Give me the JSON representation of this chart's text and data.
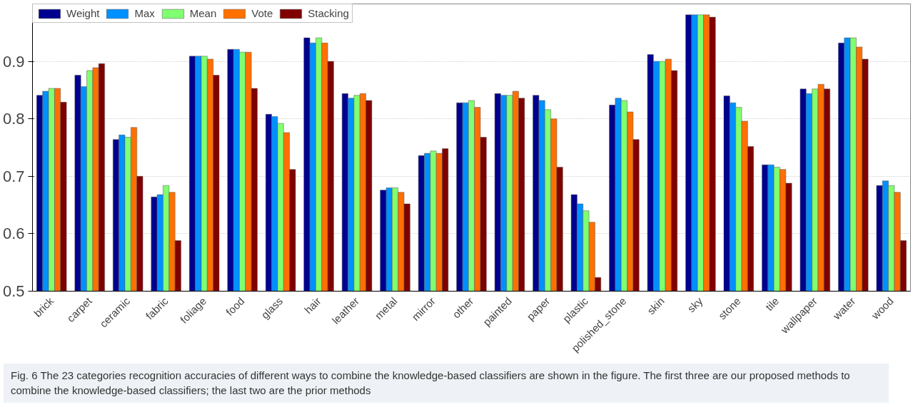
{
  "chart_data": {
    "type": "bar",
    "categories": [
      "brick",
      "carpet",
      "ceramic",
      "fabric",
      "foliage",
      "food",
      "glass",
      "hair",
      "leather",
      "metal",
      "mirror",
      "other",
      "painted",
      "paper",
      "plastic",
      "polished_stone",
      "skin",
      "sky",
      "stone",
      "tile",
      "wallpaper",
      "water",
      "wood"
    ],
    "series": [
      {
        "name": "Weight",
        "color": "#00008f",
        "values": [
          0.841,
          0.876,
          0.764,
          0.664,
          0.909,
          0.921,
          0.808,
          0.941,
          0.844,
          0.676,
          0.736,
          0.828,
          0.844,
          0.841,
          0.668,
          0.824,
          0.912,
          0.981,
          0.84,
          0.72,
          0.852,
          0.932,
          0.684
        ]
      },
      {
        "name": "Max",
        "color": "#0090ff",
        "values": [
          0.848,
          0.856,
          0.772,
          0.668,
          0.909,
          0.921,
          0.804,
          0.932,
          0.836,
          0.68,
          0.74,
          0.828,
          0.841,
          0.832,
          0.652,
          0.836,
          0.9,
          0.981,
          0.828,
          0.72,
          0.844,
          0.941,
          0.692
        ]
      },
      {
        "name": "Mean",
        "color": "#80ff70",
        "values": [
          0.853,
          0.884,
          0.768,
          0.684,
          0.909,
          0.916,
          0.792,
          0.941,
          0.841,
          0.68,
          0.744,
          0.832,
          0.841,
          0.816,
          0.64,
          0.832,
          0.9,
          0.981,
          0.82,
          0.716,
          0.852,
          0.941,
          0.684
        ]
      },
      {
        "name": "Vote",
        "color": "#ff7000",
        "values": [
          0.853,
          0.889,
          0.785,
          0.672,
          0.904,
          0.916,
          0.776,
          0.932,
          0.844,
          0.672,
          0.74,
          0.82,
          0.848,
          0.8,
          0.62,
          0.812,
          0.904,
          0.981,
          0.796,
          0.712,
          0.86,
          0.925,
          0.672
        ]
      },
      {
        "name": "Stacking",
        "color": "#800000",
        "values": [
          0.829,
          0.896,
          0.7,
          0.588,
          0.876,
          0.853,
          0.712,
          0.9,
          0.832,
          0.652,
          0.748,
          0.768,
          0.836,
          0.716,
          0.524,
          0.764,
          0.884,
          0.977,
          0.752,
          0.688,
          0.852,
          0.904,
          0.588
        ]
      }
    ],
    "ylim": [
      0.5,
      1.0
    ],
    "yticks": [
      0.5,
      0.6,
      0.7,
      0.8,
      0.9
    ],
    "grid": "y",
    "legend": "top left",
    "annotations": [
      "Fig. 6 The 23 categories recognition accuracies of different ways to combine the knowledge-based classifiers are shown in the figure. The first three are our proposed methods to combine the knowledge-based classifiers; the last two are the prior methods"
    ]
  }
}
